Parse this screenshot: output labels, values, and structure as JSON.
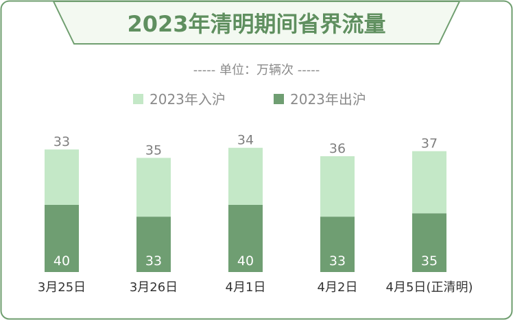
{
  "title": "2023年清明期间省界流量",
  "unit_line": "----- 单位：万辆次 -----",
  "legend": {
    "inbound": "2023年入沪",
    "outbound": "2023年出沪"
  },
  "colors": {
    "border": "#6f9e6f",
    "title_text": "#5f8f5f",
    "inbound": "#c4e8c7",
    "outbound": "#6f9e72",
    "value_on_light": "#7f7f7f",
    "value_on_dark": "#ffffff",
    "axis_label": "#333333",
    "unit_text": "#8a8a8a"
  },
  "chart_data": {
    "type": "bar",
    "stacked": true,
    "categories": [
      "3月25日",
      "3月26日",
      "4月1日",
      "4月2日",
      "4月5日(正清明)"
    ],
    "series": [
      {
        "name": "2023年出沪",
        "values": [
          40,
          33,
          40,
          33,
          35
        ]
      },
      {
        "name": "2023年入沪",
        "values": [
          33,
          35,
          34,
          36,
          37
        ]
      }
    ],
    "ylabel": "",
    "xlabel": "",
    "grid": false,
    "legend_position": "top-center"
  }
}
